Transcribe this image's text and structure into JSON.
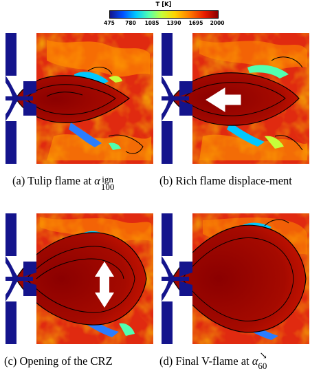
{
  "colorbar": {
    "title": "T [K]",
    "ticks": [
      "475",
      "780",
      "1085",
      "1390",
      "1695",
      "2000"
    ],
    "colors": [
      "#14148c",
      "#0050ff",
      "#00c8ff",
      "#52ffb0",
      "#c6ff3a",
      "#ffd400",
      "#ff7a00",
      "#e81a00",
      "#8b0000"
    ]
  },
  "panels": [
    {
      "caption_label": "(a)",
      "caption_text": "Tulip flame at",
      "symbol": "α",
      "sup": "ign",
      "sub": "100"
    },
    {
      "caption_label": "(b)",
      "caption_text": "Rich flame displace-ment"
    },
    {
      "caption_label": "(c)",
      "caption_text": "Opening of the CRZ"
    },
    {
      "caption_label": "(d)",
      "caption_text": "Final V-flame at",
      "symbol": "α",
      "sub": "60",
      "arrow": "↘"
    }
  ]
}
